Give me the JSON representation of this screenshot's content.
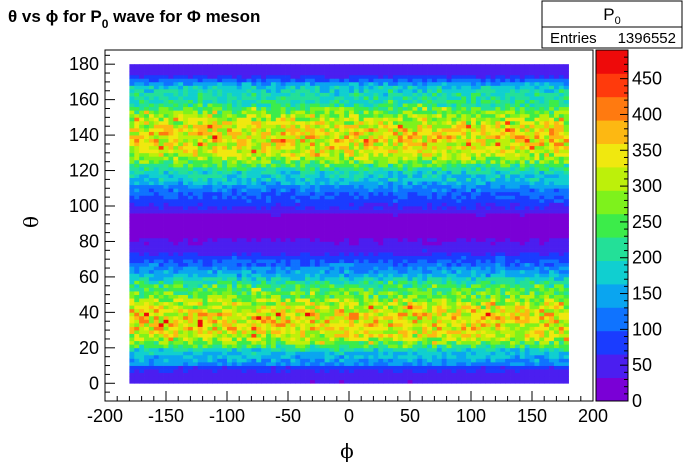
{
  "title": {
    "theta_sym": "θ",
    "vs": " vs ",
    "phi_sym": "ϕ",
    "for_p": " for P",
    "sub": "0",
    "wave_for": " wave for ",
    "Phi_sym": "Φ",
    "meson": " meson"
  },
  "stats_box": {
    "name": "P",
    "name_sub": "0",
    "entries_label": "Entries",
    "entries_value": "1396552"
  },
  "colors": {
    "frame": "#000000",
    "empty": "#ffffff",
    "palette": [
      "#7a00d6",
      "#4b1ef0",
      "#1a3cff",
      "#0f73ff",
      "#0aa5f0",
      "#10cfd0",
      "#23e098",
      "#3cec4a",
      "#7ef21c",
      "#bdf00a",
      "#f0e80f",
      "#fdb812",
      "#ff7a10",
      "#ff3a0c",
      "#ee0a0a"
    ]
  },
  "chart_data": {
    "type": "heatmap",
    "title": "θ vs ϕ for P0 wave for Φ meson",
    "xlabel": "ϕ",
    "ylabel": "θ",
    "xlim": [
      -200,
      200
    ],
    "ylim": [
      -10,
      188
    ],
    "x_ticks": [
      -200,
      -150,
      -100,
      -50,
      0,
      50,
      100,
      150,
      200
    ],
    "x_tick_labels": [
      "-200",
      "-150",
      "-100",
      "-50",
      "0",
      "50",
      "100",
      "150",
      "200"
    ],
    "y_ticks": [
      0,
      20,
      40,
      60,
      80,
      100,
      120,
      140,
      160,
      180
    ],
    "y_tick_labels": [
      "0",
      "20",
      "40",
      "60",
      "80",
      "100",
      "120",
      "140",
      "160",
      "180"
    ],
    "z_range": [
      0,
      490
    ],
    "z_ticks": [
      0,
      50,
      100,
      150,
      200,
      250,
      300,
      350,
      400,
      450
    ],
    "z_tick_labels": [
      "0",
      "50",
      "100",
      "150",
      "200",
      "250",
      "300",
      "350",
      "400",
      "450"
    ],
    "x_bins": {
      "min": -180,
      "max": 180,
      "n": 90
    },
    "y_bins": {
      "min": 0,
      "max": 180,
      "n": 90
    },
    "theta_profile": {
      "theta": [
        0,
        2,
        4,
        6,
        8,
        10,
        14,
        18,
        22,
        26,
        30,
        34,
        38,
        42,
        46,
        50,
        54,
        58,
        62,
        66,
        70,
        74,
        78,
        82,
        84,
        86,
        88,
        90,
        92,
        94,
        96,
        98,
        102,
        106,
        110,
        114,
        118,
        122,
        126,
        130,
        134,
        138,
        142,
        146,
        150,
        154,
        158,
        162,
        166,
        170,
        172,
        174,
        176,
        178,
        180
      ],
      "mean_counts": [
        20,
        60,
        30,
        80,
        40,
        120,
        150,
        170,
        260,
        310,
        330,
        345,
        345,
        330,
        300,
        260,
        240,
        200,
        150,
        120,
        90,
        60,
        40,
        30,
        10,
        4,
        2,
        1,
        6,
        20,
        35,
        55,
        80,
        100,
        120,
        170,
        180,
        220,
        290,
        320,
        330,
        340,
        340,
        320,
        300,
        260,
        210,
        200,
        190,
        130,
        80,
        60,
        40,
        60,
        30
      ]
    },
    "max_cell_count": 480,
    "entries": 1396552
  }
}
